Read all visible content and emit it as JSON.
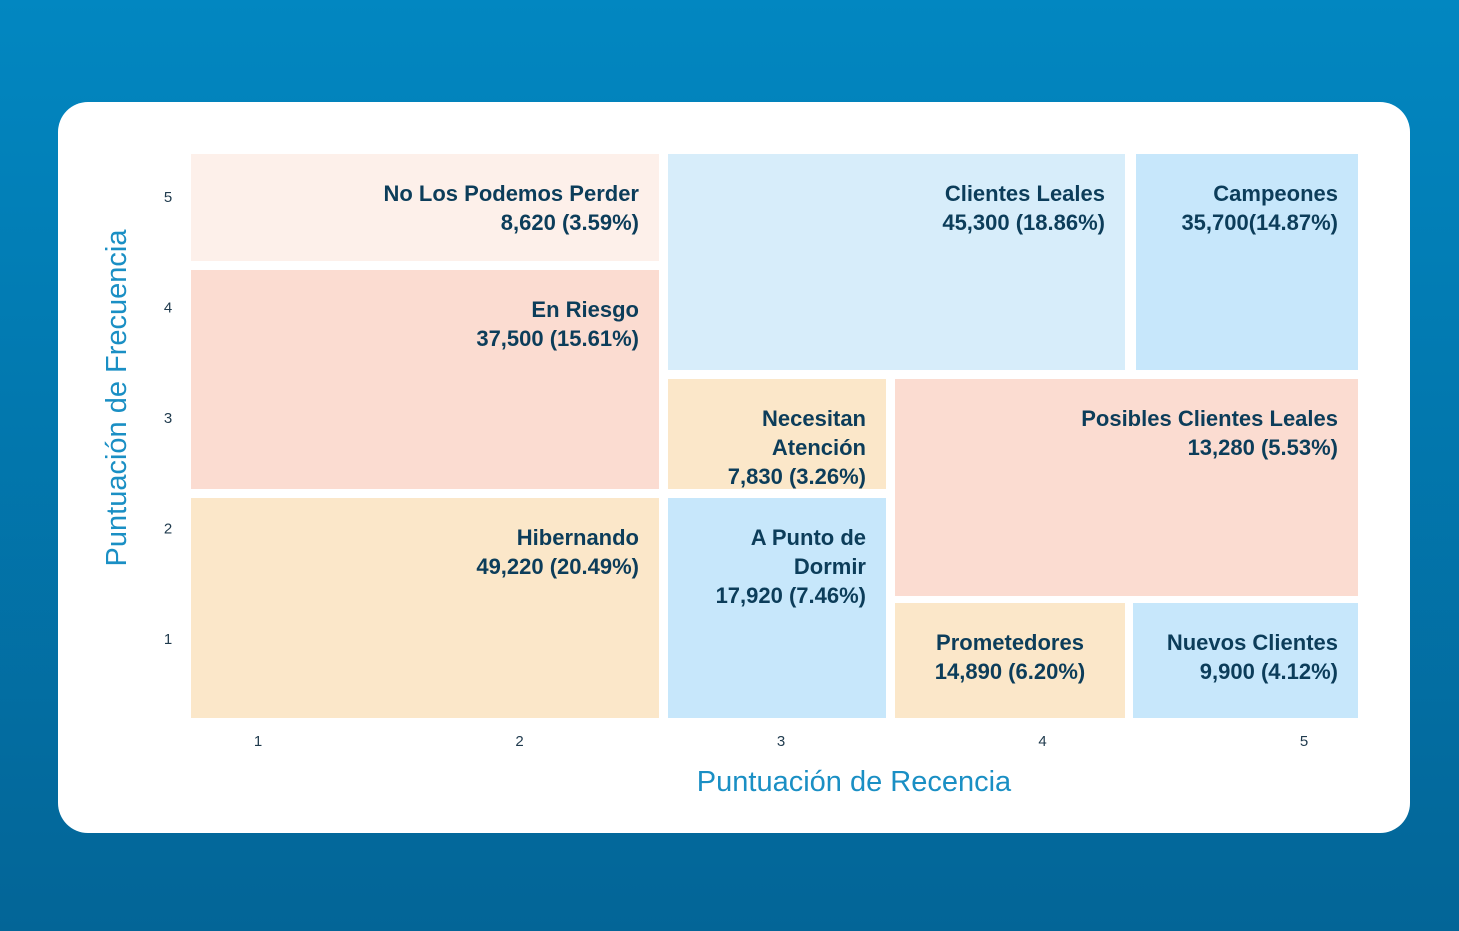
{
  "chart_data": {
    "type": "heatmap",
    "xlabel": "Puntuación de Recencia",
    "ylabel": "Puntuación de Frecuencia",
    "x_ticks": [
      "1",
      "2",
      "3",
      "4",
      "5"
    ],
    "y_ticks": [
      "1",
      "2",
      "3",
      "4",
      "5"
    ],
    "grid": false,
    "segments": [
      {
        "name": "No Los Podemos Perder",
        "lines": [
          "No Los Podemos Perder"
        ],
        "value": "8,620 (3.59%)",
        "customers": 8620,
        "percent": 3.59,
        "recency": [
          1,
          2
        ],
        "frequency": [
          5,
          5
        ],
        "color": "#fdf0ea"
      },
      {
        "name": "En Riesgo",
        "lines": [
          "En Riesgo"
        ],
        "value": "37,500 (15.61%)",
        "customers": 37500,
        "percent": 15.61,
        "recency": [
          1,
          2
        ],
        "frequency": [
          3,
          4
        ],
        "color": "#fbdcd1"
      },
      {
        "name": "Hibernando",
        "lines": [
          "Hibernando"
        ],
        "value": "49,220 (20.49%)",
        "customers": 49220,
        "percent": 20.49,
        "recency": [
          1,
          2
        ],
        "frequency": [
          1,
          2
        ],
        "color": "#fbe7c9"
      },
      {
        "name": "Clientes Leales",
        "lines": [
          "Clientes Leales"
        ],
        "value": "45,300 (18.86%)",
        "customers": 45300,
        "percent": 18.86,
        "recency": [
          3,
          4
        ],
        "frequency": [
          4,
          5
        ],
        "color": "#d7edfa"
      },
      {
        "name": "Campeones",
        "lines": [
          "Campeones"
        ],
        "value": "35,700(14.87%)",
        "customers": 35700,
        "percent": 14.87,
        "recency": [
          5,
          5
        ],
        "frequency": [
          4,
          5
        ],
        "color": "#c7e7fb"
      },
      {
        "name": "Necesitan Atención",
        "lines": [
          "Necesitan",
          "Atención"
        ],
        "value": "7,830 (3.26%)",
        "customers": 7830,
        "percent": 3.26,
        "recency": [
          3,
          3
        ],
        "frequency": [
          3,
          3
        ],
        "color": "#fbe7c9"
      },
      {
        "name": "A Punto de Dormir",
        "lines": [
          "A Punto de",
          "Dormir"
        ],
        "value": "17,920 (7.46%)",
        "customers": 17920,
        "percent": 7.46,
        "recency": [
          3,
          3
        ],
        "frequency": [
          1,
          2
        ],
        "color": "#c7e7fb"
      },
      {
        "name": "Posibles Clientes Leales",
        "lines": [
          "Posibles Clientes Leales"
        ],
        "value": "13,280 (5.53%)",
        "customers": 13280,
        "percent": 5.53,
        "recency": [
          4,
          5
        ],
        "frequency": [
          2,
          3
        ],
        "color": "#fbdcd1"
      },
      {
        "name": "Prometedores",
        "lines": [
          "Prometedores"
        ],
        "value": "14,890 (6.20%)",
        "customers": 14890,
        "percent": 6.2,
        "recency": [
          4,
          4
        ],
        "frequency": [
          1,
          1
        ],
        "color": "#fbe7c9"
      },
      {
        "name": "Nuevos Clientes",
        "lines": [
          "Nuevos Clientes"
        ],
        "value": "9,900 (4.12%)",
        "customers": 9900,
        "percent": 4.12,
        "recency": [
          5,
          5
        ],
        "frequency": [
          1,
          1
        ],
        "color": "#c7e7fb"
      }
    ]
  }
}
